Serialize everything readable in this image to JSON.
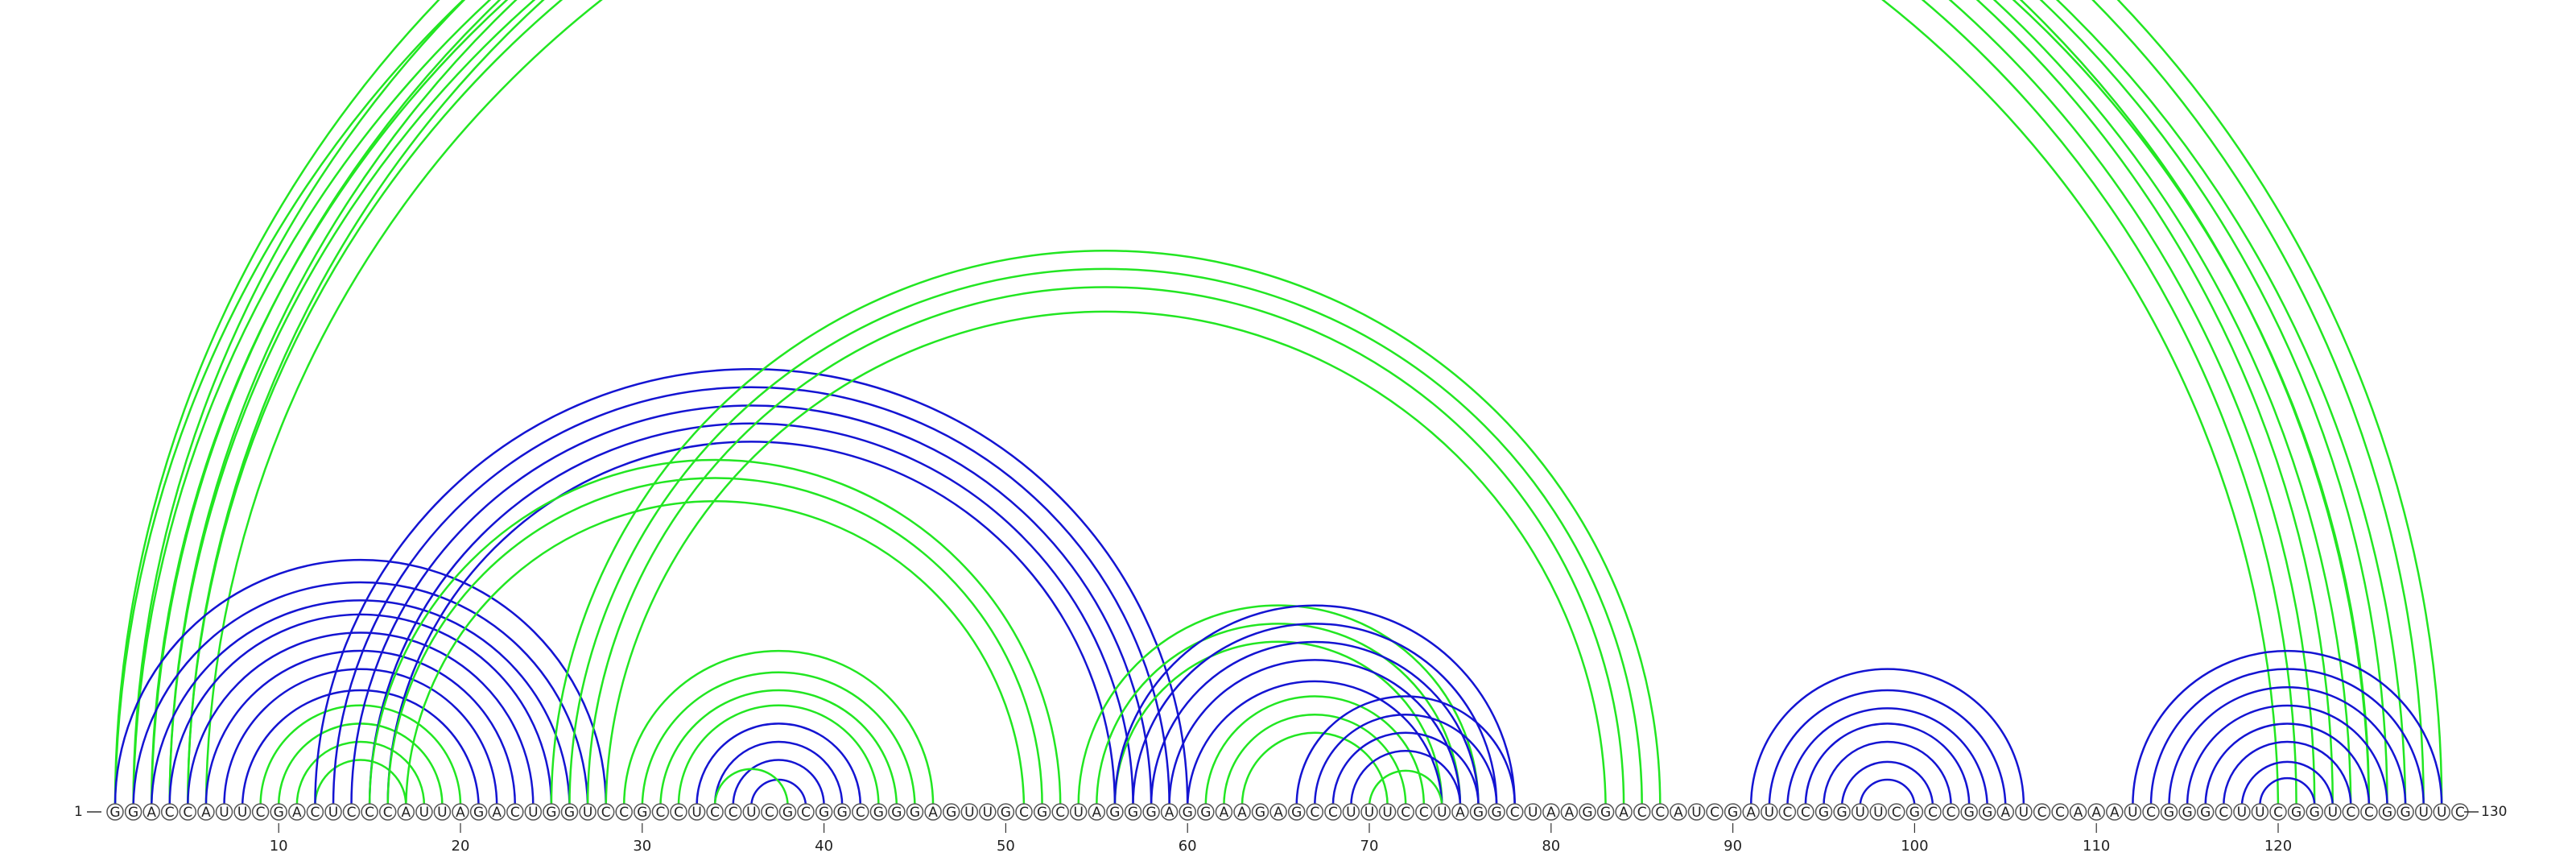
{
  "diagram": {
    "sequence": "GGACCAUUCGACUCCCAUUAGACUGGUCCGCCUCCUCGCGGCGGGAGUUGCGCUAGGGAGGAAGAGCCUUUCCUAGGCUAAGGACCAUCGAUCCGGUUCGCCGGAUCCAAAUCGGGCUUCGGUCCGGUUC",
    "start_label": "1",
    "end_label": "130",
    "ticks": [
      10,
      20,
      30,
      40,
      50,
      60,
      70,
      80,
      90,
      100,
      110,
      120
    ],
    "colors": {
      "green": "#22e622",
      "blue": "#1414d2"
    },
    "arc_groups": [
      {
        "color": "green",
        "pairs": [
          [
            1,
            125
          ],
          [
            2,
            124
          ],
          [
            3,
            123
          ],
          [
            4,
            122
          ],
          [
            5,
            121
          ],
          [
            6,
            120
          ],
          [
            1,
            129
          ],
          [
            2,
            128
          ],
          [
            3,
            127
          ],
          [
            4,
            126
          ],
          [
            5,
            125
          ]
        ]
      },
      {
        "color": "blue",
        "pairs": [
          [
            1,
            28
          ],
          [
            2,
            27
          ],
          [
            3,
            26
          ],
          [
            4,
            25
          ],
          [
            5,
            24
          ],
          [
            6,
            23
          ],
          [
            7,
            22
          ],
          [
            8,
            21
          ]
        ]
      },
      {
        "color": "green",
        "pairs": [
          [
            9,
            20
          ],
          [
            10,
            19
          ],
          [
            11,
            18
          ],
          [
            12,
            17
          ]
        ]
      },
      {
        "color": "blue",
        "pairs": [
          [
            12,
            60
          ],
          [
            13,
            59
          ],
          [
            14,
            58
          ],
          [
            15,
            57
          ],
          [
            16,
            56
          ]
        ]
      },
      {
        "color": "green",
        "pairs": [
          [
            15,
            53
          ],
          [
            16,
            52
          ],
          [
            17,
            51
          ]
        ]
      },
      {
        "color": "green",
        "pairs": [
          [
            25,
            86
          ],
          [
            26,
            85
          ],
          [
            27,
            84
          ],
          [
            28,
            83
          ]
        ]
      },
      {
        "color": "green",
        "pairs": [
          [
            29,
            46
          ],
          [
            30,
            45
          ],
          [
            31,
            44
          ],
          [
            32,
            43
          ]
        ]
      },
      {
        "color": "blue",
        "pairs": [
          [
            33,
            42
          ],
          [
            34,
            41
          ],
          [
            35,
            40
          ],
          [
            36,
            39
          ]
        ]
      },
      {
        "color": "green",
        "pairs": [
          [
            34,
            38
          ]
        ]
      },
      {
        "color": "green",
        "pairs": [
          [
            54,
            76
          ],
          [
            55,
            75
          ],
          [
            56,
            74
          ]
        ]
      },
      {
        "color": "blue",
        "pairs": [
          [
            56,
            78
          ],
          [
            57,
            77
          ],
          [
            58,
            76
          ],
          [
            59,
            75
          ],
          [
            60,
            74
          ]
        ]
      },
      {
        "color": "green",
        "pairs": [
          [
            61,
            73
          ],
          [
            62,
            72
          ],
          [
            63,
            71
          ]
        ]
      },
      {
        "color": "blue",
        "pairs": [
          [
            66,
            78
          ],
          [
            67,
            77
          ],
          [
            68,
            76
          ],
          [
            69,
            75
          ]
        ]
      },
      {
        "color": "green",
        "pairs": [
          [
            70,
            74
          ]
        ]
      },
      {
        "color": "blue",
        "pairs": [
          [
            91,
            106
          ],
          [
            92,
            105
          ],
          [
            93,
            104
          ],
          [
            94,
            103
          ],
          [
            95,
            102
          ],
          [
            96,
            101
          ],
          [
            97,
            100
          ]
        ]
      },
      {
        "color": "blue",
        "pairs": [
          [
            112,
            129
          ],
          [
            113,
            128
          ],
          [
            114,
            127
          ],
          [
            115,
            126
          ],
          [
            116,
            125
          ],
          [
            117,
            124
          ],
          [
            118,
            123
          ],
          [
            119,
            122
          ]
        ]
      }
    ]
  }
}
